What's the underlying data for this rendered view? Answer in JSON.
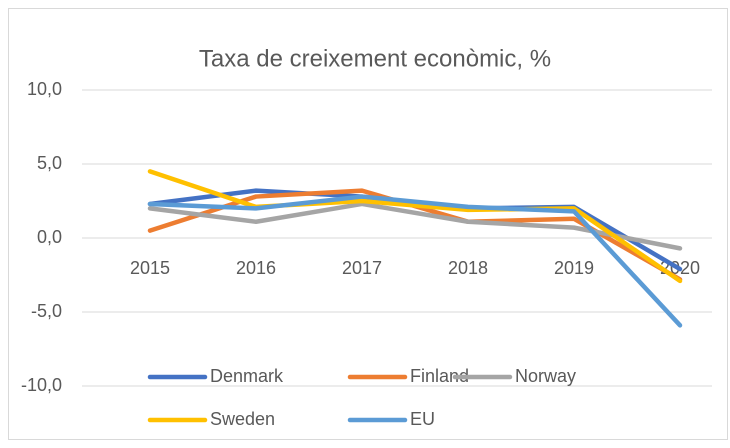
{
  "chart_data": {
    "type": "line",
    "title": "Taxa de creixement econòmic, %",
    "categories": [
      "2015",
      "2016",
      "2017",
      "2018",
      "2019",
      "2020"
    ],
    "series": [
      {
        "name": "Denmark",
        "color": "#4472c4",
        "values": [
          2.3,
          3.2,
          2.8,
          2.0,
          2.1,
          -2.1
        ]
      },
      {
        "name": "Finland",
        "color": "#ed7d31",
        "values": [
          0.5,
          2.8,
          3.2,
          1.1,
          1.3,
          -2.8
        ]
      },
      {
        "name": "Norway",
        "color": "#a5a5a5",
        "values": [
          2.0,
          1.1,
          2.3,
          1.1,
          0.7,
          -0.7
        ]
      },
      {
        "name": "Sweden",
        "color": "#ffc000",
        "values": [
          4.5,
          2.1,
          2.5,
          1.9,
          2.0,
          -2.9
        ]
      },
      {
        "name": "EU",
        "color": "#5b9bd5",
        "values": [
          2.3,
          2.0,
          2.8,
          2.1,
          1.8,
          -5.9
        ]
      }
    ],
    "ylim": [
      -10,
      10
    ],
    "yticks": [
      {
        "value": -10,
        "label": "-10,0"
      },
      {
        "value": -5,
        "label": "-5,0"
      },
      {
        "value": 0,
        "label": "0,0"
      },
      {
        "value": 5,
        "label": "5,0"
      },
      {
        "value": 10,
        "label": "10,0"
      }
    ],
    "grid": true,
    "legend": "bottom"
  }
}
